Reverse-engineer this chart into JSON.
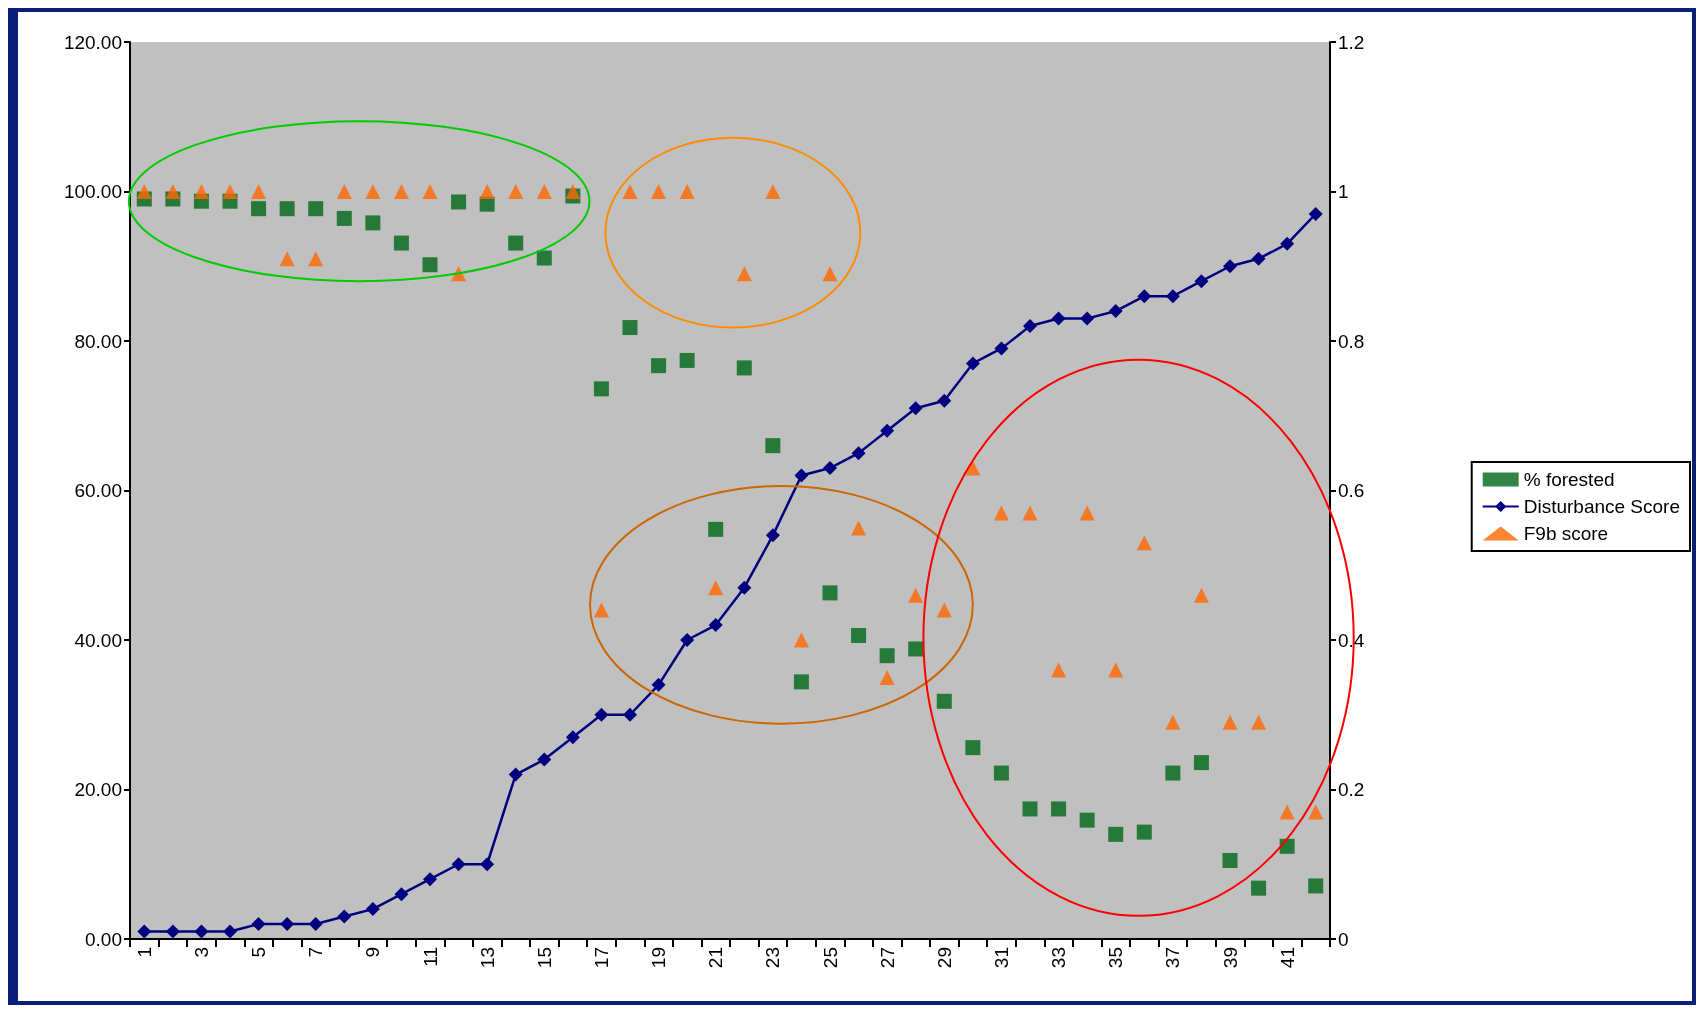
{
  "chart_data": {
    "type": "scatter",
    "categories": [
      "1",
      null,
      "3",
      null,
      "5",
      null,
      "7",
      null,
      "9",
      null,
      "11",
      null,
      "13",
      null,
      "15",
      null,
      "17",
      null,
      "19",
      null,
      "21",
      null,
      "23",
      null,
      "25",
      null,
      "27",
      null,
      "29",
      null,
      "31",
      null,
      "33",
      null,
      "35",
      null,
      "37",
      null,
      "39",
      null,
      "41",
      null
    ],
    "series": [
      {
        "name": "% forested",
        "marker": "square",
        "color": "#006618",
        "values": [
          99.0,
          99.0,
          98.7,
          98.7,
          97.7,
          97.7,
          97.7,
          96.4,
          95.8,
          93.1,
          90.2,
          98.6,
          98.3,
          93.1,
          91.1,
          99.4,
          73.6,
          81.8,
          76.7,
          77.4,
          54.8,
          76.4,
          66.0,
          34.4,
          46.3,
          40.6,
          37.9,
          38.8,
          31.8,
          25.6,
          22.2,
          17.4,
          17.4,
          15.9,
          14.0,
          14.3,
          22.2,
          23.6,
          10.5,
          6.8,
          12.4,
          7.1
        ]
      },
      {
        "name": "Disturbance Score",
        "type": "line",
        "marker": "diamond",
        "axis": "y2",
        "color": "#000080",
        "values": [
          0.01,
          0.01,
          0.01,
          0.01,
          0.02,
          0.02,
          0.02,
          0.03,
          0.04,
          0.06,
          0.08,
          0.1,
          0.1,
          0.22,
          0.24,
          0.27,
          0.3,
          0.3,
          0.34,
          0.4,
          0.42,
          0.47,
          0.54,
          0.62,
          0.63,
          0.65,
          0.68,
          0.71,
          0.72,
          0.77,
          0.79,
          0.82,
          0.83,
          0.83,
          0.84,
          0.86,
          0.86,
          0.88,
          0.9,
          0.91,
          0.93,
          0.97
        ]
      },
      {
        "name": "F9b score",
        "marker": "triangle",
        "color": "#ff6600",
        "values": [
          100,
          100,
          100,
          100,
          100,
          91,
          91,
          100,
          100,
          100,
          100,
          89,
          100,
          100,
          100,
          100,
          44,
          100,
          100,
          100,
          47,
          89,
          100,
          40,
          89,
          55,
          35,
          46,
          44,
          63,
          57,
          57,
          36,
          57,
          36,
          53,
          29,
          46,
          29,
          29,
          17,
          17
        ]
      }
    ],
    "ylim": [
      0,
      120
    ],
    "yticks": [
      {
        "value": 0,
        "label": "0.00"
      },
      {
        "value": 20,
        "label": "20.00"
      },
      {
        "value": 40,
        "label": "40.00"
      },
      {
        "value": 60,
        "label": "60.00"
      },
      {
        "value": 80,
        "label": "80.00"
      },
      {
        "value": 100,
        "label": "100.00"
      },
      {
        "value": 120,
        "label": "120.00"
      }
    ],
    "y2lim": [
      0,
      1.2
    ],
    "y2ticks": [
      0,
      0.2,
      0.4,
      0.6,
      0.8,
      1,
      1.2
    ],
    "grid": false,
    "legend": "right"
  }
}
